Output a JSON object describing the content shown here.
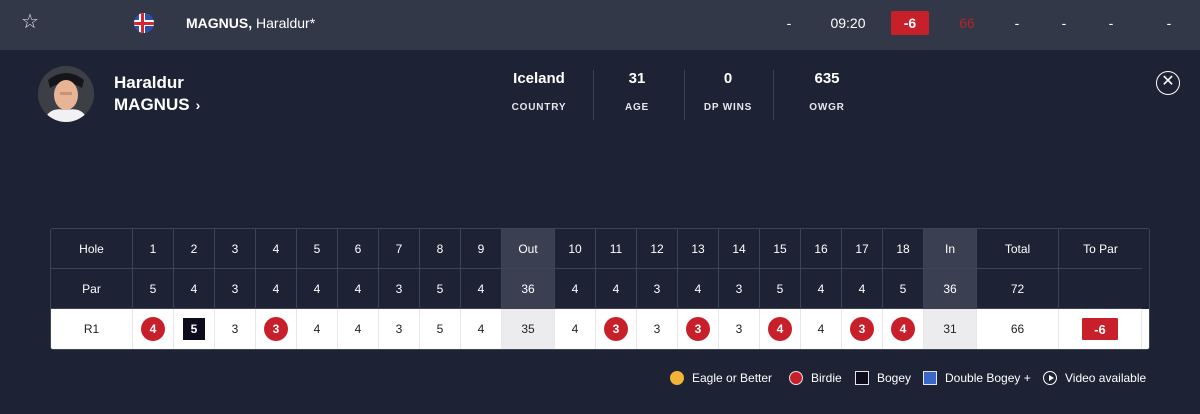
{
  "top_row": {
    "name_last": "MAGNUS,",
    "name_first": "Haraldur*",
    "pos": "-",
    "tee_time": "09:20",
    "score": "-6",
    "round": "66",
    "r2": "-",
    "r3": "-",
    "r4": "-",
    "total": "-"
  },
  "player": {
    "first_name": "Haraldur",
    "last_name": "MAGNUS",
    "stats": [
      {
        "value": "Iceland",
        "label": "COUNTRY"
      },
      {
        "value": "31",
        "label": "AGE"
      },
      {
        "value": "0",
        "label": "DP WINS"
      },
      {
        "value": "635",
        "label": "OWGR"
      }
    ]
  },
  "scorecard": {
    "row_labels": {
      "hole": "Hole",
      "par": "Par",
      "round": "R1"
    },
    "headers": [
      "1",
      "2",
      "3",
      "4",
      "5",
      "6",
      "7",
      "8",
      "9",
      "Out",
      "10",
      "11",
      "12",
      "13",
      "14",
      "15",
      "16",
      "17",
      "18",
      "In",
      "Total",
      "To Par"
    ],
    "par": [
      "5",
      "4",
      "3",
      "4",
      "4",
      "4",
      "3",
      "5",
      "4",
      "36",
      "4",
      "4",
      "3",
      "4",
      "3",
      "5",
      "4",
      "4",
      "5",
      "36",
      "72",
      ""
    ],
    "r1": [
      "4",
      "5",
      "3",
      "3",
      "4",
      "4",
      "3",
      "5",
      "4",
      "35",
      "4",
      "3",
      "3",
      "3",
      "3",
      "4",
      "4",
      "3",
      "4",
      "31",
      "66",
      "-6"
    ],
    "r1_marks": [
      "birdie",
      "bogey",
      "",
      "birdie",
      "",
      "",
      "",
      "",
      "",
      "",
      "",
      "birdie",
      "",
      "birdie",
      "",
      "birdie",
      "",
      "birdie",
      "birdie",
      "",
      "",
      ""
    ]
  },
  "legend": {
    "items": [
      {
        "label": "Eagle or Better",
        "color": "#f2b436"
      },
      {
        "label": "Birdie",
        "color": "#c8202b"
      },
      {
        "label": "Bogey",
        "color": "#0d0b1c"
      },
      {
        "label": "Double Bogey +",
        "color": "#3a68c7"
      }
    ],
    "video_label": "Video available"
  },
  "colors": {
    "background": "#1e2235",
    "top_bar": "#333848",
    "accent_red": "#c8202b"
  }
}
